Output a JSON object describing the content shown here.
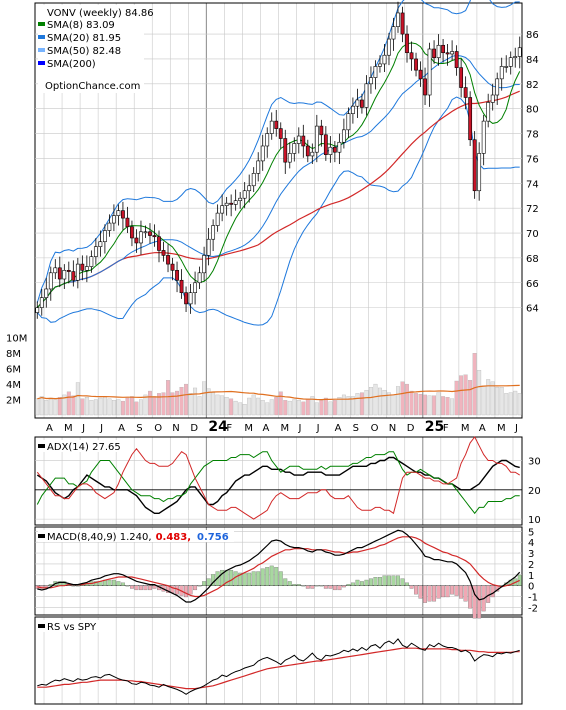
{
  "colors": {
    "grid": "#c8c8c8",
    "frame": "#000000",
    "sma8": "#008000",
    "sma20": "#1e78dc",
    "sma50": "#78b4ff",
    "sma200": "#0000ff",
    "bbBand": "#1e78dc",
    "ma50curve": "#d22828",
    "up": "#ffffff",
    "down": "#c81428",
    "adxPlus": "#008000",
    "adxMinus": "#d22828",
    "adx": "#000000",
    "macd": "#000000",
    "signal": "#d22828",
    "rs": "#000000",
    "rsAvg": "#d22828",
    "volUp": "#e6e6e6",
    "volDown": "#f0b4be",
    "volAvg": "#e07020",
    "yellow": "#e6e620"
  },
  "chart_data": [
    {
      "type": "candlestick",
      "panel": "price",
      "title": "VONV (weekly) 84.86",
      "legend": [
        {
          "label": "SMA(8) 83.09",
          "color": "#008000"
        },
        {
          "label": "SMA(20) 81.95",
          "color": "#1e78dc"
        },
        {
          "label": "SMA(50) 82.48",
          "color": "#78b4ff"
        },
        {
          "label": "SMA(200)",
          "color": "#0000ff"
        }
      ],
      "watermark": "OptionChance.com",
      "y_ticks": [
        64,
        66,
        68,
        70,
        72,
        74,
        76,
        78,
        80,
        82,
        84,
        86
      ],
      "ylim": [
        62.2,
        88.5
      ],
      "closes": [
        64.0,
        64.8,
        65.5,
        66.8,
        67.2,
        66.3,
        67.0,
        66.9,
        66.2,
        67.5,
        67.0,
        67.3,
        68.1,
        68.9,
        69.3,
        70.2,
        70.8,
        71.4,
        71.8,
        71.2,
        70.5,
        69.6,
        69.2,
        70.1,
        70.1,
        69.8,
        69.7,
        68.6,
        68.2,
        67.5,
        67.0,
        66.2,
        65.2,
        64.3,
        65.2,
        66.0,
        66.8,
        68.2,
        69.5,
        70.6,
        71.6,
        72.2,
        72.4,
        72.3,
        72.6,
        72.8,
        73.4,
        73.8,
        74.8,
        75.8,
        77.0,
        78.0,
        79.0,
        78.4,
        77.6,
        75.7,
        76.4,
        77.2,
        77.8,
        77.0,
        76.2,
        76.5,
        78.6,
        77.9,
        76.3,
        76.9,
        76.5,
        77.3,
        78.3,
        79.6,
        80.2,
        80.7,
        80.1,
        82.0,
        82.5,
        83.4,
        83.6,
        84.3,
        85.6,
        86.6,
        87.7,
        86.0,
        84.5,
        84.0,
        83.1,
        82.4,
        81.1,
        84.8,
        84.1,
        85.1,
        84.5,
        84.4,
        84.6,
        83.3,
        81.7,
        80.9,
        77.5,
        73.4,
        76.4,
        79.0,
        80.5,
        81.1,
        82.4,
        83.4,
        83.4,
        84.1,
        84.2,
        84.9
      ]
    },
    {
      "type": "bar",
      "panel": "volume",
      "y_ticks": [
        "10M",
        "8M",
        "6M",
        "4M",
        "2M"
      ],
      "y_tick_values": [
        10,
        8,
        6,
        4,
        2
      ],
      "ylim": [
        0,
        11
      ],
      "values": [
        2.1,
        2.4,
        1.9,
        2.2,
        2.0,
        2.3,
        2.6,
        3.0,
        2.5,
        4.2,
        2.1,
        2.3,
        1.9,
        2.0,
        2.2,
        2.4,
        2.1,
        1.9,
        2.0,
        1.8,
        2.2,
        2.4,
        1.7,
        2.0,
        2.6,
        3.1,
        2.4,
        2.8,
        2.9,
        4.5,
        2.9,
        3.1,
        3.6,
        4.0,
        2.8,
        3.5,
        2.4,
        4.3,
        3.4,
        2.9,
        2.6,
        2.5,
        2.3,
        2.1,
        1.8,
        1.6,
        1.4,
        2.2,
        2.6,
        2.2,
        1.9,
        1.6,
        2.0,
        2.3,
        3.0,
        1.9,
        1.8,
        2.0,
        1.9,
        1.7,
        2.1,
        2.4,
        1.6,
        1.9,
        2.2,
        1.7,
        1.9,
        2.3,
        2.6,
        2.4,
        2.4,
        2.8,
        2.9,
        3.2,
        3.6,
        4.0,
        3.5,
        3.2,
        2.9,
        2.6,
        3.7,
        4.3,
        4.0,
        3.1,
        2.8,
        2.7,
        2.6,
        2.5,
        2.5,
        2.9,
        2.4,
        2.3,
        2.1,
        4.4,
        5.1,
        5.2,
        4.5,
        8.0,
        5.8,
        3.8,
        4.6,
        4.3,
        3.6,
        3.6,
        2.8,
        2.9,
        3.1,
        2.8
      ]
    },
    {
      "type": "line",
      "panel": "adx",
      "title": "ADX(14) 27.65",
      "y_ticks": [
        10,
        20,
        30
      ],
      "ylim": [
        8,
        38
      ],
      "series": [
        {
          "key": "adx",
          "values": [
            25,
            24,
            23,
            21,
            19,
            18,
            17,
            18,
            20,
            21,
            23,
            25,
            24,
            23,
            22,
            21,
            21,
            20,
            20,
            20,
            20,
            19,
            18,
            16,
            14,
            13,
            12,
            12,
            13,
            14,
            15,
            16,
            18,
            20,
            21,
            21,
            19,
            17,
            15,
            15,
            16,
            18,
            19,
            21,
            23,
            24,
            25,
            25,
            26,
            27,
            28,
            28,
            27,
            27,
            27,
            26,
            26,
            25,
            25,
            25,
            26,
            26,
            26,
            26,
            25,
            25,
            25,
            25,
            26,
            27,
            28,
            28,
            28,
            28,
            29,
            29,
            30,
            30,
            31,
            31,
            30,
            29,
            28,
            27,
            26,
            26,
            25,
            25,
            24,
            24,
            23,
            22,
            22,
            21,
            20,
            20,
            20,
            21,
            22,
            24,
            26,
            28,
            29,
            30,
            30,
            29,
            28,
            27.65
          ]
        },
        {
          "key": "plus",
          "values": [
            15,
            18,
            20,
            22,
            24,
            24,
            24,
            22,
            22,
            21,
            22,
            23,
            26,
            28,
            30,
            30,
            30,
            28,
            26,
            24,
            22,
            20,
            19,
            18,
            18,
            18,
            17,
            17,
            16,
            17,
            17,
            18,
            18,
            19,
            22,
            24,
            26,
            28,
            29,
            30,
            30,
            30,
            30,
            31,
            31,
            32,
            32,
            32,
            31,
            32,
            33,
            33,
            30,
            28,
            26,
            27,
            28,
            28,
            28,
            27,
            27,
            27,
            27,
            28,
            27,
            28,
            28,
            28,
            28,
            28,
            29,
            29,
            30,
            31,
            31,
            32,
            32,
            32,
            33,
            33,
            30,
            27,
            25,
            26,
            26,
            27,
            26,
            25,
            24,
            24,
            23,
            22,
            22,
            20,
            18,
            16,
            14,
            12,
            14,
            14,
            16,
            16,
            16,
            16,
            17,
            17,
            18,
            18
          ]
        },
        {
          "key": "minus",
          "values": [
            26,
            24,
            22,
            20,
            18,
            18,
            17,
            17,
            19,
            21,
            22,
            22,
            21,
            19,
            18,
            17,
            18,
            19,
            22,
            26,
            29,
            32,
            34,
            32,
            30,
            29,
            29,
            28,
            28,
            28,
            29,
            31,
            33,
            32,
            28,
            24,
            21,
            18,
            15,
            14,
            13,
            13,
            13,
            14,
            14,
            13,
            12,
            11,
            10,
            11,
            12,
            13,
            16,
            18,
            19,
            18,
            17,
            17,
            17,
            18,
            19,
            19,
            19,
            20,
            20,
            18,
            17,
            17,
            17,
            18,
            16,
            14,
            13,
            13,
            13,
            14,
            14,
            13,
            13,
            12,
            18,
            24,
            26,
            26,
            26,
            25,
            24,
            24,
            23,
            23,
            22,
            22,
            23,
            24,
            29,
            32,
            36,
            38,
            35,
            32,
            30,
            30,
            29,
            29,
            28,
            26,
            26,
            25
          ]
        }
      ]
    },
    {
      "type": "line",
      "panel": "macd",
      "title": "MACD(8,40,9) 1.240,",
      "macd_label": "1.240,",
      "signal_label": "0.483,",
      "hist_label": "0.756",
      "y_ticks": [
        -2,
        -1,
        0,
        1,
        2,
        3,
        4,
        5
      ],
      "ylim": [
        -2.7,
        5.4
      ],
      "series": [
        {
          "key": "macd",
          "values": [
            -0.3,
            -0.4,
            -0.3,
            -0.1,
            0.2,
            0.3,
            0.3,
            0.2,
            0.1,
            0.1,
            0.2,
            0.3,
            0.5,
            0.6,
            0.7,
            0.9,
            1.0,
            1.1,
            1.1,
            1.0,
            0.8,
            0.6,
            0.4,
            0.3,
            0.2,
            0.1,
            0.1,
            -0.1,
            -0.3,
            -0.5,
            -0.7,
            -0.9,
            -1.2,
            -1.5,
            -1.5,
            -1.3,
            -1.0,
            -0.6,
            -0.2,
            0.3,
            0.7,
            1.1,
            1.4,
            1.6,
            1.8,
            1.9,
            2.1,
            2.3,
            2.6,
            2.9,
            3.3,
            3.7,
            4.1,
            4.2,
            4.1,
            3.8,
            3.6,
            3.5,
            3.5,
            3.4,
            3.2,
            3.1,
            3.3,
            3.3,
            3.1,
            3.0,
            2.8,
            2.8,
            2.9,
            3.1,
            3.3,
            3.5,
            3.5,
            3.7,
            3.9,
            4.1,
            4.3,
            4.5,
            4.7,
            4.9,
            5.1,
            5.0,
            4.7,
            4.3,
            3.8,
            3.3,
            2.7,
            2.6,
            2.4,
            2.4,
            2.3,
            2.2,
            2.2,
            2.0,
            1.6,
            1.2,
            0.4,
            -0.8,
            -1.3,
            -1.2,
            -0.9,
            -0.7,
            -0.4,
            -0.1,
            0.2,
            0.5,
            0.8,
            1.24
          ]
        },
        {
          "key": "signal",
          "values": [
            -0.1,
            -0.2,
            -0.2,
            -0.2,
            -0.1,
            0.0,
            0.0,
            0.1,
            0.1,
            0.1,
            0.1,
            0.2,
            0.2,
            0.3,
            0.4,
            0.5,
            0.6,
            0.7,
            0.8,
            0.8,
            0.8,
            0.8,
            0.7,
            0.6,
            0.5,
            0.4,
            0.3,
            0.2,
            0.1,
            0.0,
            -0.2,
            -0.3,
            -0.5,
            -0.7,
            -0.9,
            -1.0,
            -1.0,
            -0.9,
            -0.7,
            -0.5,
            -0.3,
            0.0,
            0.3,
            0.5,
            0.8,
            1.0,
            1.2,
            1.4,
            1.6,
            1.9,
            2.1,
            2.4,
            2.7,
            2.9,
            3.1,
            3.3,
            3.3,
            3.4,
            3.4,
            3.4,
            3.4,
            3.3,
            3.3,
            3.3,
            3.3,
            3.2,
            3.1,
            3.1,
            3.0,
            3.0,
            3.1,
            3.1,
            3.2,
            3.3,
            3.4,
            3.5,
            3.7,
            3.8,
            4.0,
            4.2,
            4.4,
            4.5,
            4.5,
            4.5,
            4.4,
            4.2,
            3.9,
            3.7,
            3.5,
            3.3,
            3.1,
            3.0,
            2.8,
            2.7,
            2.5,
            2.3,
            2.0,
            1.5,
            1.0,
            0.6,
            0.3,
            0.1,
            0.0,
            -0.1,
            0.0,
            0.1,
            0.3,
            0.483
          ]
        }
      ]
    },
    {
      "type": "line",
      "panel": "rs",
      "title": "RS vs SPY",
      "ylim": [
        0,
        100
      ],
      "series": [
        {
          "key": "rs",
          "values": [
            20,
            22,
            21,
            25,
            28,
            27,
            30,
            28,
            26,
            30,
            28,
            29,
            32,
            33,
            31,
            35,
            36,
            33,
            30,
            28,
            27,
            23,
            22,
            25,
            24,
            21,
            20,
            18,
            22,
            19,
            17,
            15,
            12,
            8,
            12,
            15,
            17,
            20,
            24,
            28,
            30,
            35,
            33,
            37,
            40,
            42,
            45,
            47,
            49,
            55,
            58,
            60,
            57,
            54,
            50,
            56,
            59,
            63,
            57,
            55,
            60,
            66,
            59,
            56,
            63,
            62,
            64,
            66,
            70,
            68,
            72,
            69,
            74,
            70,
            76,
            78,
            73,
            80,
            83,
            79,
            86,
            77,
            74,
            80,
            76,
            72,
            70,
            78,
            75,
            80,
            76,
            74,
            74,
            72,
            68,
            70,
            66,
            55,
            60,
            64,
            63,
            61,
            66,
            65,
            67,
            66,
            68,
            70
          ]
        },
        {
          "key": "rsavg",
          "values": [
            18,
            18,
            18,
            19,
            20,
            21,
            22,
            22,
            23,
            24,
            25,
            25,
            26,
            27,
            28,
            28,
            28,
            28,
            28,
            28,
            27,
            27,
            26,
            26,
            25,
            24,
            23,
            22,
            21,
            20,
            19,
            18,
            17,
            16,
            16,
            16,
            17,
            18,
            19,
            20,
            22,
            24,
            26,
            28,
            30,
            32,
            34,
            36,
            38,
            40,
            42,
            44,
            45,
            46,
            47,
            48,
            49,
            50,
            51,
            52,
            53,
            54,
            55,
            55,
            56,
            57,
            58,
            59,
            60,
            61,
            62,
            63,
            64,
            65,
            66,
            67,
            68,
            69,
            70,
            71,
            72,
            73,
            73,
            73,
            73,
            72,
            72,
            72,
            72,
            72,
            72,
            72,
            71,
            71,
            70,
            70,
            70,
            69,
            68,
            68,
            67,
            67,
            67,
            67,
            67,
            67,
            68,
            68
          ]
        }
      ]
    }
  ],
  "months": [
    {
      "label": "A",
      "bold": false
    },
    {
      "label": "M",
      "bold": false
    },
    {
      "label": "J",
      "bold": false
    },
    {
      "label": "J",
      "bold": false
    },
    {
      "label": "A",
      "bold": false
    },
    {
      "label": "S",
      "bold": false
    },
    {
      "label": "O",
      "bold": false
    },
    {
      "label": "N",
      "bold": false
    },
    {
      "label": "D",
      "bold": false
    },
    {
      "label": "24",
      "bold": true
    },
    {
      "label": "F",
      "bold": false
    },
    {
      "label": "M",
      "bold": false
    },
    {
      "label": "A",
      "bold": false
    },
    {
      "label": "M",
      "bold": false
    },
    {
      "label": "J",
      "bold": false
    },
    {
      "label": "J",
      "bold": false
    },
    {
      "label": "A",
      "bold": false
    },
    {
      "label": "S",
      "bold": false
    },
    {
      "label": "O",
      "bold": false
    },
    {
      "label": "N",
      "bold": false
    },
    {
      "label": "D",
      "bold": false
    },
    {
      "label": "25",
      "bold": true
    },
    {
      "label": "F",
      "bold": false
    },
    {
      "label": "M",
      "bold": false
    },
    {
      "label": "A",
      "bold": false
    },
    {
      "label": "M",
      "bold": false
    },
    {
      "label": "J",
      "bold": false
    }
  ]
}
